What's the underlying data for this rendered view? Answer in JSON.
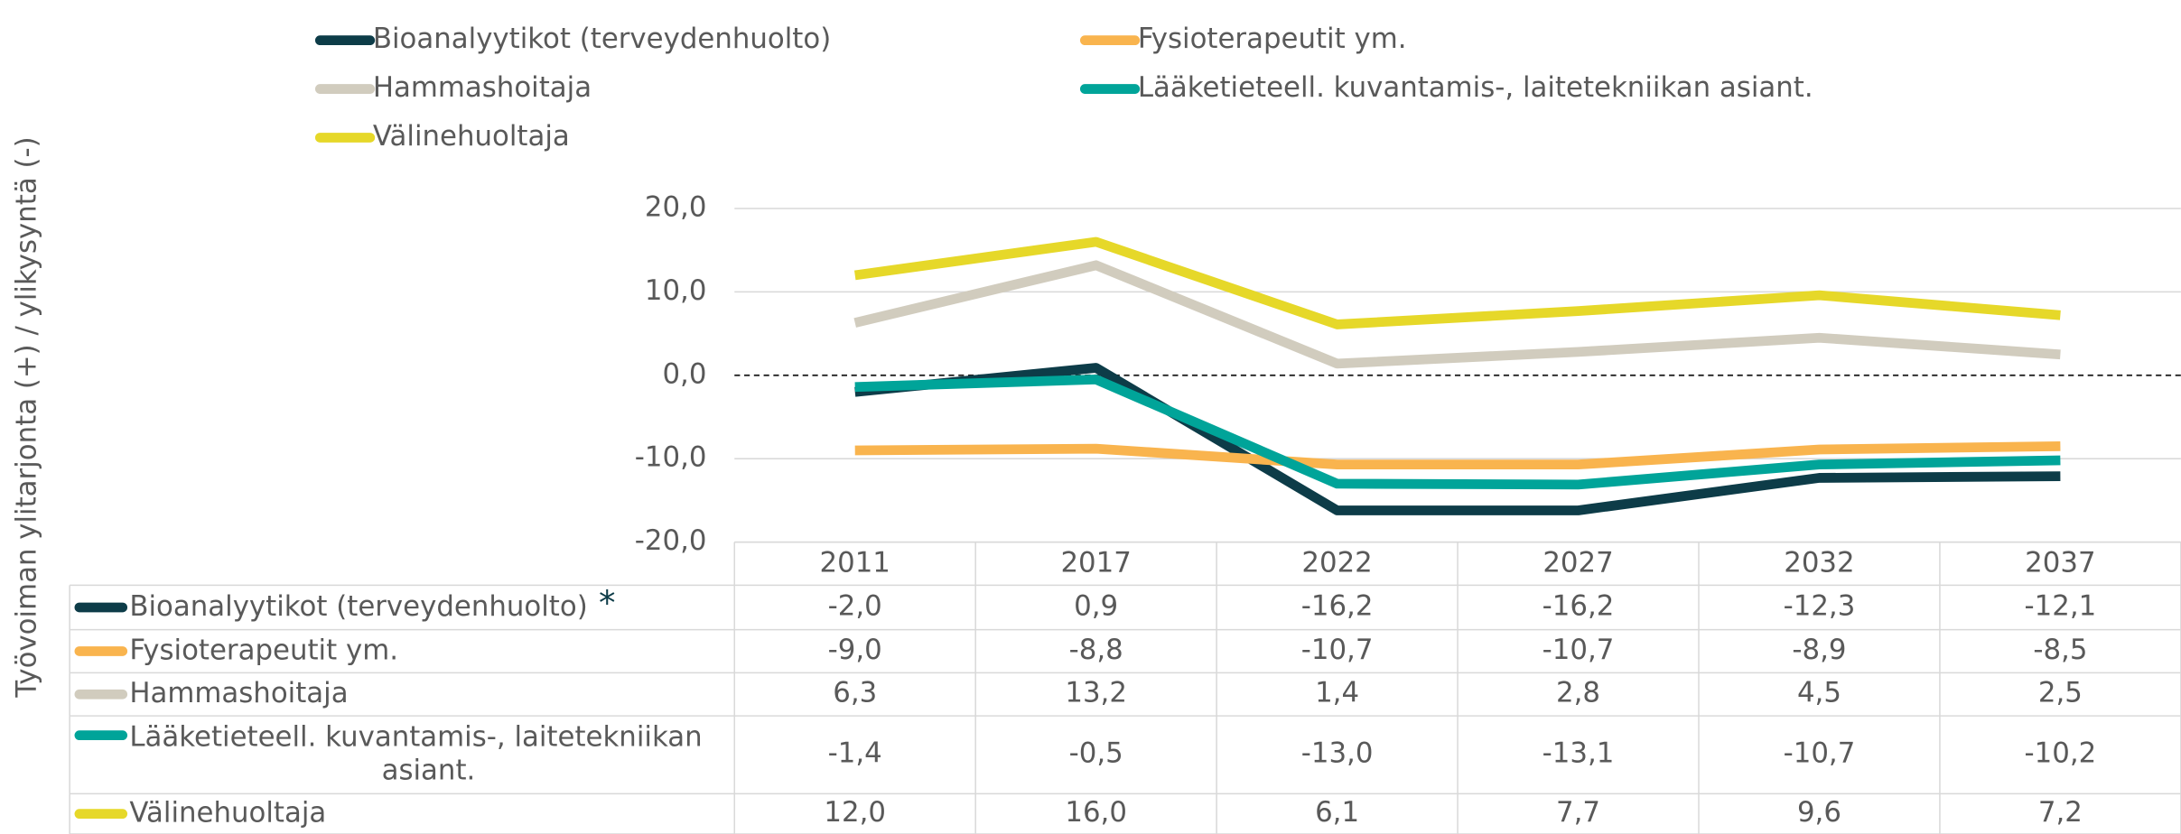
{
  "chart_data": {
    "type": "line",
    "y_axis_label": "Työvoiman ylitarjonta (+) / ylikysyntä (-)",
    "categories": [
      "2011",
      "2017",
      "2022",
      "2027",
      "2032",
      "2037"
    ],
    "ylim": [
      -20,
      20
    ],
    "yticks": [
      {
        "value": -20,
        "label": "-20,0"
      },
      {
        "value": -10,
        "label": "-10,0"
      },
      {
        "value": 0,
        "label": "0,0"
      },
      {
        "value": 10,
        "label": "10,0"
      },
      {
        "value": 20,
        "label": "20,0"
      }
    ],
    "grid": true,
    "table_marker": "*",
    "series": [
      {
        "name": "Bioanalyytikot (terveydenhuolto)",
        "color": "#0d3c48",
        "values": [
          -2.0,
          0.9,
          -16.2,
          -16.2,
          -12.3,
          -12.1
        ],
        "value_labels": [
          "-2,0",
          "0,9",
          "-16,2",
          "-16,2",
          "-12,3",
          "-12,1"
        ]
      },
      {
        "name": "Fysioterapeutit ym.",
        "color": "#f9b44e",
        "values": [
          -9.0,
          -8.8,
          -10.7,
          -10.7,
          -8.9,
          -8.5
        ],
        "value_labels": [
          "-9,0",
          "-8,8",
          "-10,7",
          "-10,7",
          "-8,9",
          "-8,5"
        ]
      },
      {
        "name": "Hammashoitaja",
        "color": "#d1ccbe",
        "values": [
          6.3,
          13.2,
          1.4,
          2.8,
          4.5,
          2.5
        ],
        "value_labels": [
          "6,3",
          "13,2",
          "1,4",
          "2,8",
          "4,5",
          "2,5"
        ]
      },
      {
        "name": "Lääketieteell. kuvantamis-, laitetekniikan asiant.",
        "color": "#00a499",
        "values": [
          -1.4,
          -0.5,
          -13.0,
          -13.1,
          -10.7,
          -10.2
        ],
        "value_labels": [
          "-1,4",
          "-0,5",
          "-13,0",
          "-13,1",
          "-10,7",
          "-10,2"
        ]
      },
      {
        "name": "Välinehuoltaja",
        "color": "#e6d829",
        "values": [
          12.0,
          16.0,
          6.1,
          7.7,
          9.6,
          7.2
        ],
        "value_labels": [
          "12,0",
          "16,0",
          "6,1",
          "7,7",
          "9,6",
          "7,2"
        ]
      }
    ]
  }
}
